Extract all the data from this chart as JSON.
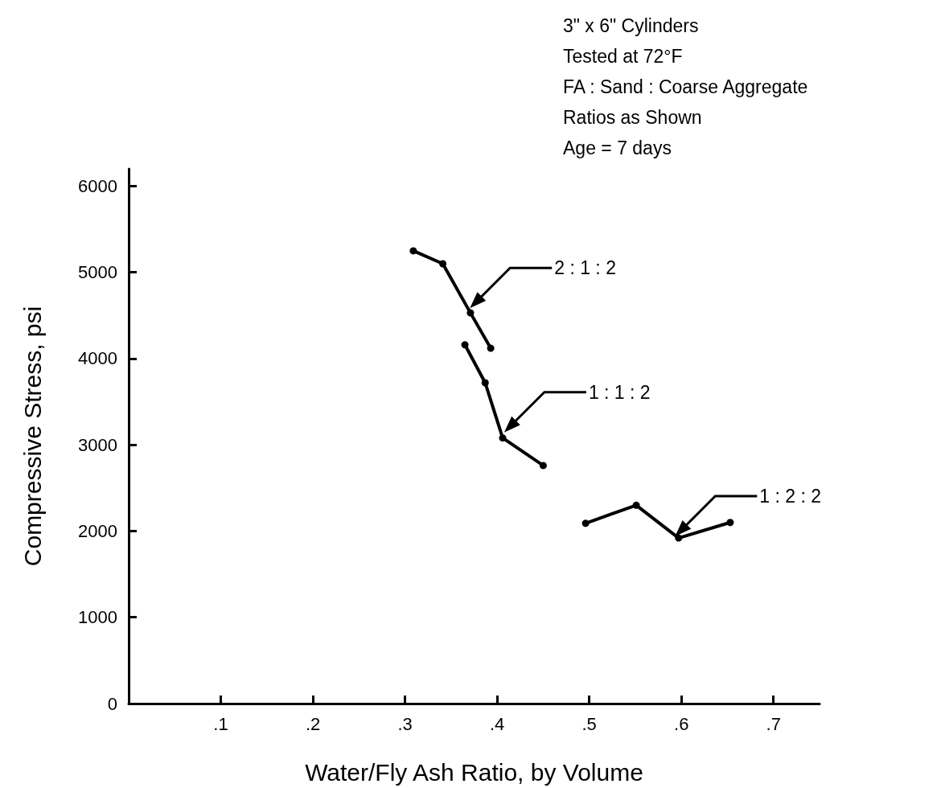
{
  "chart_data": {
    "type": "line",
    "xlabel": "Water/Fly Ash Ratio, by Volume",
    "ylabel": "Compressive Stress, psi",
    "xlim": [
      0,
      0.75
    ],
    "ylim": [
      0,
      6200
    ],
    "xticks": [
      {
        "value": 0.1,
        "label": ".1"
      },
      {
        "value": 0.2,
        "label": ".2"
      },
      {
        "value": 0.3,
        "label": ".3"
      },
      {
        "value": 0.4,
        "label": ".4"
      },
      {
        "value": 0.5,
        "label": ".5"
      },
      {
        "value": 0.6,
        "label": ".6"
      },
      {
        "value": 0.7,
        "label": ".7"
      }
    ],
    "yticks": [
      0,
      1000,
      2000,
      3000,
      4000,
      5000,
      6000
    ],
    "grid": false,
    "legend": false,
    "marker": "circle",
    "line_style": "solid",
    "series": [
      {
        "name": "2 : 1 : 2",
        "color": "#000000",
        "x": [
          0.309,
          0.341,
          0.371,
          0.393
        ],
        "values": [
          5250,
          5100,
          4530,
          4120
        ]
      },
      {
        "name": "1 : 1 : 2",
        "color": "#000000",
        "x": [
          0.365,
          0.387,
          0.406,
          0.45
        ],
        "values": [
          4160,
          3720,
          3080,
          2760
        ]
      },
      {
        "name": "1 : 2 : 2",
        "color": "#000000",
        "x": [
          0.496,
          0.551,
          0.597,
          0.653
        ],
        "values": [
          2090,
          2300,
          1920,
          2100
        ]
      }
    ],
    "annotations": [
      "3\" x 6\" Cylinders",
      "Tested at 72°F",
      "FA : Sand : Coarse Aggregate",
      "Ratios as Shown",
      "Age = 7 days"
    ]
  }
}
